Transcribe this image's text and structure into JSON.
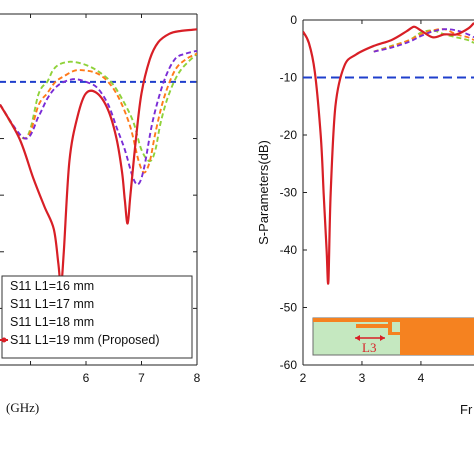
{
  "chart_data": [
    {
      "type": "line",
      "title": "",
      "xlabel": "(GHz)",
      "ylabel": "",
      "xlim": [
        4.45,
        8.0
      ],
      "ylim": [
        -60,
        2
      ],
      "xticks": [
        5,
        6,
        7,
        8
      ],
      "xtick_labels": [
        "",
        "6",
        "7",
        "8"
      ],
      "grid": false,
      "legend_position": "bottom",
      "reference_line": {
        "y": -10,
        "color": "#1f3fcc",
        "style": "dashed"
      },
      "series": [
        {
          "name": "S11 L1=16 mm",
          "color": "#8fd23a",
          "style": "dashed",
          "x": [
            4.45,
            4.9,
            5.15,
            5.3,
            5.4,
            5.5,
            5.65,
            5.8,
            6.0,
            6.2,
            6.45,
            6.65,
            6.85,
            7.0,
            7.15,
            7.25,
            7.35,
            7.5,
            7.7,
            8.0
          ],
          "y": [
            -14,
            -20,
            -12,
            -10,
            -8,
            -7,
            -6.5,
            -6.5,
            -7,
            -8,
            -10,
            -13,
            -17,
            -22,
            -24,
            -22,
            -17,
            -12,
            -8,
            -5
          ]
        },
        {
          "name": "S11 L1=17 mm",
          "color": "#ff7a1a",
          "style": "dashed",
          "x": [
            4.45,
            4.9,
            5.15,
            5.3,
            5.45,
            5.6,
            5.8,
            6.0,
            6.2,
            6.4,
            6.6,
            6.8,
            6.95,
            7.05,
            7.15,
            7.25,
            7.4,
            7.6,
            7.8,
            8.0
          ],
          "y": [
            -14,
            -20,
            -14,
            -12,
            -10,
            -9,
            -8,
            -8,
            -8.5,
            -10,
            -13,
            -18,
            -24,
            -26,
            -24,
            -19,
            -13,
            -8,
            -6,
            -5
          ]
        },
        {
          "name": "S11 L1=18 mm",
          "color": "#7a2cd6",
          "style": "dashed",
          "x": [
            4.45,
            4.9,
            5.15,
            5.3,
            5.45,
            5.6,
            5.8,
            6.0,
            6.2,
            6.4,
            6.55,
            6.7,
            6.85,
            6.95,
            7.05,
            7.2,
            7.4,
            7.6,
            7.8,
            8.0
          ],
          "y": [
            -14,
            -20,
            -16,
            -13,
            -11,
            -10,
            -9.5,
            -10,
            -11,
            -14,
            -18,
            -22,
            -27,
            -28,
            -25,
            -17,
            -10,
            -6,
            -5,
            -4.5
          ]
        },
        {
          "name": "S11 L1=19 mm (Proposed)",
          "color": "#d81f26",
          "style": "solid",
          "x": [
            4.45,
            4.8,
            5.05,
            5.25,
            5.42,
            5.5,
            5.55,
            5.6,
            5.7,
            5.85,
            6.0,
            6.2,
            6.4,
            6.55,
            6.65,
            6.7,
            6.75,
            6.8,
            6.9,
            7.0,
            7.15,
            7.3,
            7.5,
            7.7,
            7.9,
            8.0
          ],
          "y": [
            -14,
            -20,
            -27,
            -32,
            -36,
            -42,
            -46,
            -40,
            -24,
            -16,
            -12,
            -12,
            -15,
            -20,
            -26,
            -31,
            -35,
            -30,
            -20,
            -12,
            -6,
            -3,
            -1.5,
            -1,
            -0.8,
            -0.7
          ]
        }
      ]
    },
    {
      "type": "line",
      "title": "",
      "xlabel": "Fr",
      "ylabel": "S-Parameters(dB)",
      "xlim": [
        2,
        4.9
      ],
      "ylim": [
        -60,
        0
      ],
      "xticks": [
        2,
        3,
        4
      ],
      "xtick_labels": [
        "2",
        "3",
        "4"
      ],
      "yticks": [
        0,
        -10,
        -20,
        -30,
        -40,
        -50,
        -60
      ],
      "ytick_labels": [
        "0",
        "-10",
        "-20",
        "-30",
        "-40",
        "-50",
        "-60"
      ],
      "grid": false,
      "reference_line": {
        "y": -10,
        "color": "#1f3fcc",
        "style": "dashed"
      },
      "inset_label": "L3",
      "series": [
        {
          "name": "green",
          "color": "#8fd23a",
          "style": "dashed",
          "x": [
            3.2,
            3.5,
            3.8,
            4.0,
            4.2,
            4.4,
            4.6,
            4.8,
            4.9
          ],
          "y": [
            -5.5,
            -4.5,
            -3.5,
            -2.2,
            -1.8,
            -2.5,
            -3,
            -3.5,
            -4
          ]
        },
        {
          "name": "orange",
          "color": "#ff7a1a",
          "style": "dashed",
          "x": [
            3.2,
            3.5,
            3.8,
            4.0,
            4.2,
            4.4,
            4.6,
            4.8,
            4.9
          ],
          "y": [
            -5.5,
            -4.6,
            -3.5,
            -2.5,
            -1.8,
            -1.6,
            -2.5,
            -3,
            -3.5
          ]
        },
        {
          "name": "purple",
          "color": "#7a2cd6",
          "style": "dashed",
          "x": [
            3.2,
            3.5,
            3.8,
            4.0,
            4.2,
            4.4,
            4.6,
            4.8,
            4.9
          ],
          "y": [
            -5.5,
            -4.8,
            -3.8,
            -2.8,
            -2.0,
            -1.6,
            -1.8,
            -2.5,
            -3
          ]
        },
        {
          "name": "red",
          "color": "#d81f26",
          "style": "solid",
          "x": [
            2.0,
            2.1,
            2.2,
            2.3,
            2.35,
            2.4,
            2.43,
            2.47,
            2.55,
            2.7,
            2.9,
            3.2,
            3.5,
            3.75,
            3.85,
            3.9,
            4.0,
            4.2,
            4.4,
            4.6,
            4.8,
            4.9
          ],
          "y": [
            -2,
            -4,
            -9,
            -20,
            -30,
            -40,
            -45.5,
            -30,
            -15,
            -8,
            -6,
            -4.5,
            -3.5,
            -2,
            -1.3,
            -1.2,
            -1.8,
            -3,
            -2.5,
            -2.5,
            -1.5,
            -0.5
          ]
        }
      ]
    }
  ]
}
